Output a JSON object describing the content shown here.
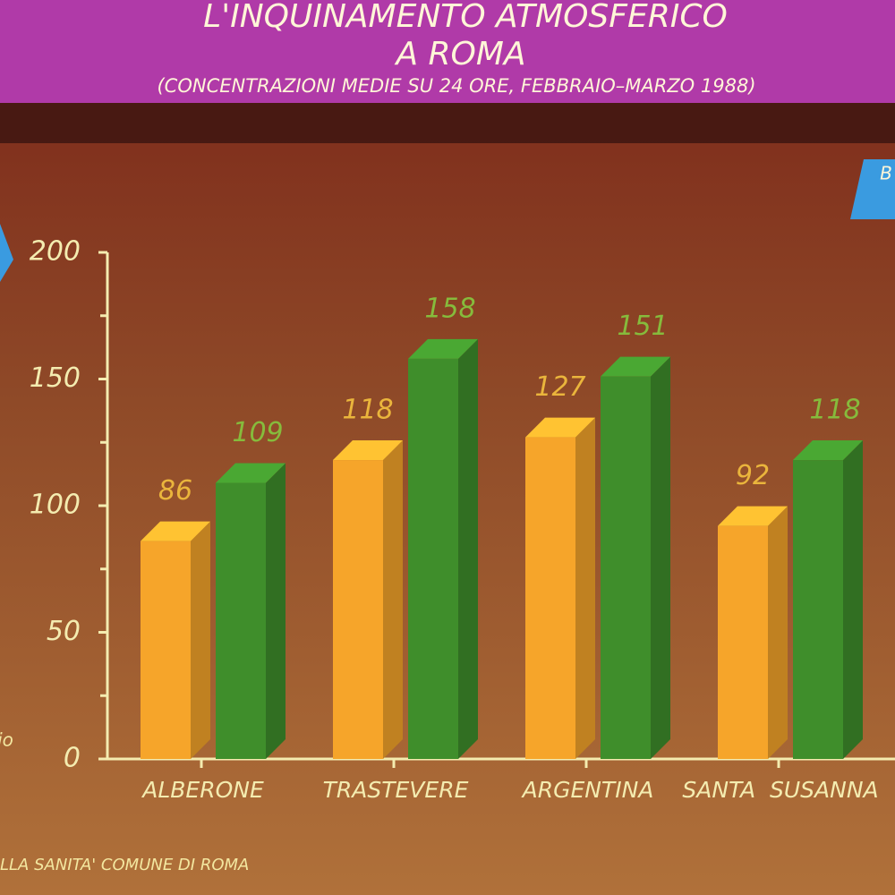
{
  "chart_data": {
    "type": "bar3d",
    "title": [
      "L'INQUINAMENTO ATMOSFERICO",
      "A ROMA"
    ],
    "subtitle": "(CONCENTRAZIONI MEDIE SU 24 ORE, FEBBRAIO–MARZO 1988)",
    "categories": [
      "ALBERONE",
      "TRASTEVERE",
      "ARGENTINA",
      "SANTA  SUSANNA"
    ],
    "series": [
      {
        "color": "#f6a52a",
        "values": [
          86,
          118,
          127,
          92
        ]
      },
      {
        "color": "#3f8e2b",
        "values": [
          109,
          158,
          151,
          118
        ]
      }
    ],
    "ylim": [
      0,
      200
    ],
    "yticks": [
      0,
      50,
      100,
      150,
      200
    ],
    "yminorticks": [
      25,
      75,
      125,
      175
    ],
    "annotations": [
      "B",
      "io"
    ],
    "source": "LLA SANITA' COMUNE DI ROMA"
  }
}
